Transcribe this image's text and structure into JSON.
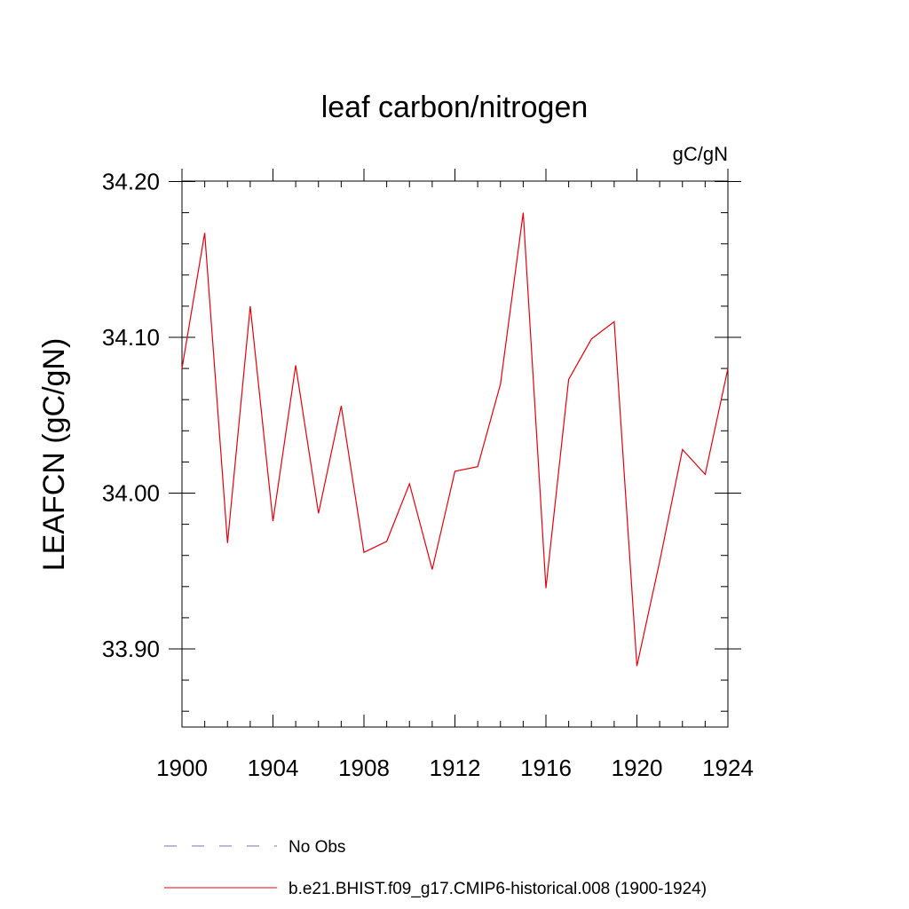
{
  "chart_data": {
    "type": "line",
    "title": "leaf carbon/nitrogen",
    "units_label": "gC/gN",
    "ylabel": "LEAFCN  (gC/gN)",
    "xlabel": "",
    "xlim": [
      1900,
      1924
    ],
    "ylim": [
      33.85,
      34.21
    ],
    "x_ticks": [
      1900,
      1904,
      1908,
      1912,
      1916,
      1920,
      1924
    ],
    "x_tick_labels": [
      "1900",
      "1904",
      "1908",
      "1912",
      "1916",
      "1920",
      "1924"
    ],
    "y_ticks": [
      33.9,
      34.0,
      34.1,
      34.2
    ],
    "y_tick_labels": [
      "33.90",
      "34.00",
      "34.10",
      "34.20"
    ],
    "series": [
      {
        "name": "No Obs",
        "color": "#7070c0",
        "style": "dashed",
        "x": [],
        "values": []
      },
      {
        "name": "b.e21.BHIST.f09_g17.CMIP6-historical.008 (1900-1924)",
        "color": "#e8000b",
        "style": "solid",
        "x": [
          1900,
          1901,
          1902,
          1903,
          1904,
          1905,
          1906,
          1907,
          1908,
          1909,
          1910,
          1911,
          1912,
          1913,
          1914,
          1915,
          1916,
          1917,
          1918,
          1919,
          1920,
          1921,
          1922,
          1923,
          1924
        ],
        "values": [
          34.08,
          34.167,
          33.968,
          34.12,
          33.982,
          34.082,
          33.987,
          34.056,
          33.962,
          33.969,
          34.006,
          33.951,
          34.014,
          34.017,
          34.07,
          34.18,
          33.939,
          34.073,
          34.099,
          34.11,
          33.889,
          33.956,
          34.028,
          34.012,
          34.08
        ]
      }
    ]
  }
}
